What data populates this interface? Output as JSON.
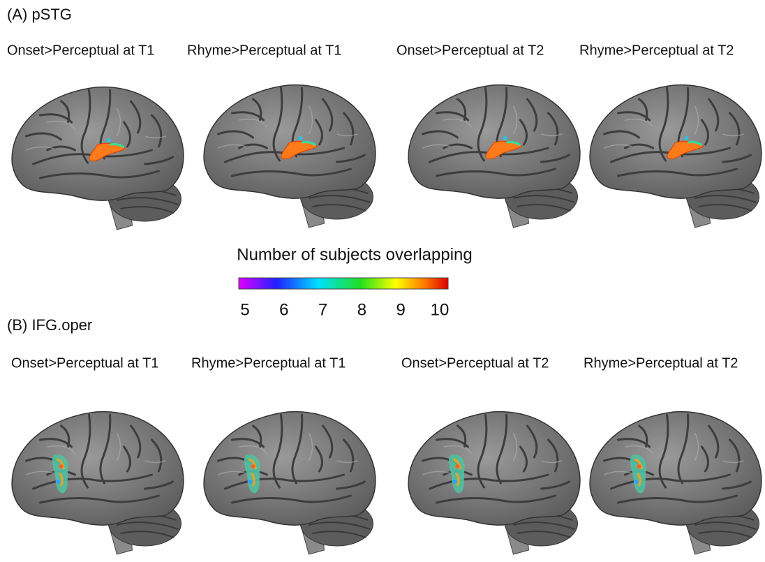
{
  "panels": [
    {
      "label": "(A) pSTG",
      "titles": [
        "Onset>Perceptual at T1",
        "Rhyme>Perceptual at T1",
        "Onset>Perceptual at T2",
        "Rhyme>Perceptual at T2"
      ]
    },
    {
      "label": "(B) IFG.oper",
      "titles": [
        "Onset>Perceptual at T1",
        "Rhyme>Perceptual at T1",
        "Onset>Perceptual at T2",
        "Rhyme>Perceptual at T2"
      ]
    }
  ],
  "colorbar": {
    "title": "Number of subjects overlapping",
    "ticks": [
      5,
      6,
      7,
      8,
      9,
      10
    ]
  }
}
